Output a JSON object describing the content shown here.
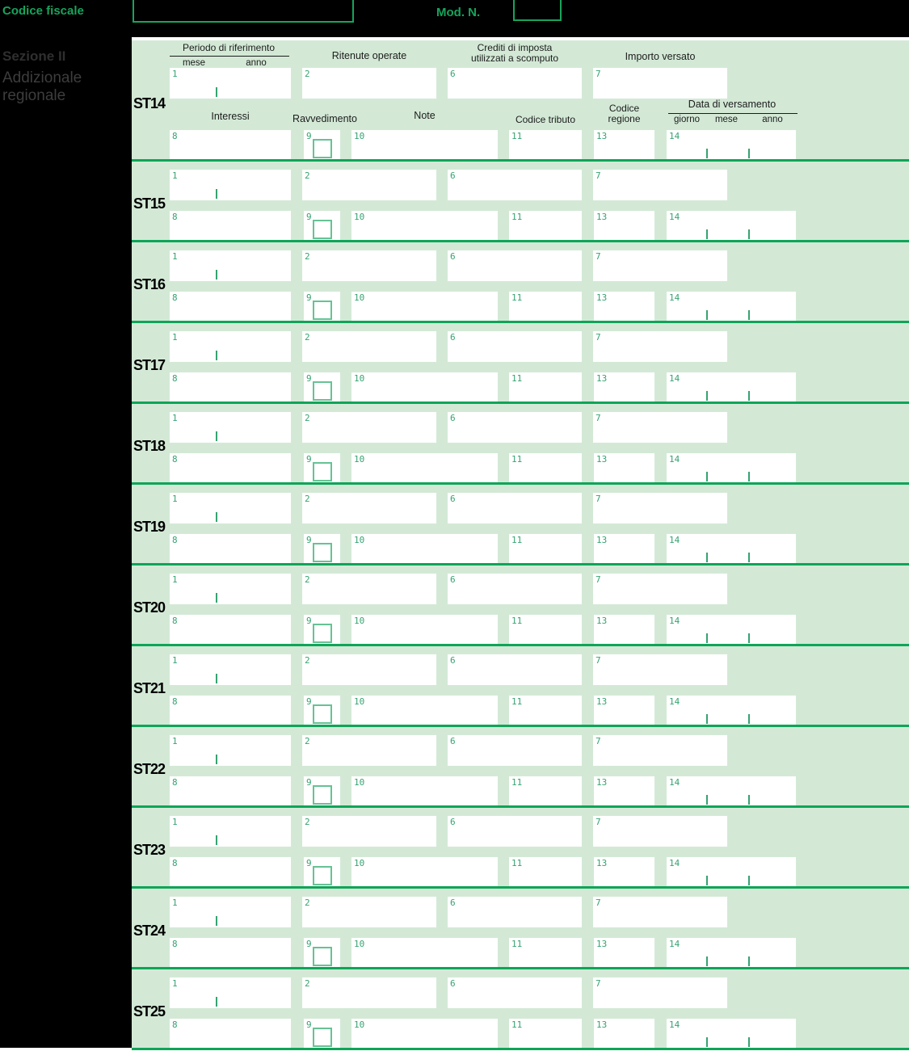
{
  "topbar": {
    "codice_fiscale_label": "Codice fiscale",
    "mod_n_label": "Mod. N."
  },
  "sidebar": {
    "section_title": "Sezione II",
    "section_subtitle": "Addizionale regionale"
  },
  "headers": {
    "periodo_di_riferimento": "Periodo di riferimento",
    "mese": "mese",
    "anno": "anno",
    "ritenute_operate": "Ritenute operate",
    "crediti_line1": "Crediti di imposta",
    "crediti_line2": "utilizzati a scomputo",
    "importo_versato": "Importo versato",
    "interessi": "Interessi",
    "ravvedimento": "Ravvedimento",
    "note": "Note",
    "codice_tributo": "Codice tributo",
    "codice_regione_line1": "Codice",
    "codice_regione_line2": "regione",
    "data_di_versamento": "Data di versamento",
    "giorno": "giorno",
    "mese2": "mese",
    "anno2": "anno"
  },
  "field_numbers": {
    "f1": "1",
    "f2": "2",
    "f6": "6",
    "f7": "7",
    "f8": "8",
    "f9": "9",
    "f10": "10",
    "f11": "11",
    "f13": "13",
    "f14": "14"
  },
  "rows": [
    {
      "label": "ST14"
    },
    {
      "label": "ST15"
    },
    {
      "label": "ST16"
    },
    {
      "label": "ST17"
    },
    {
      "label": "ST18"
    },
    {
      "label": "ST19"
    },
    {
      "label": "ST20"
    },
    {
      "label": "ST21"
    },
    {
      "label": "ST22"
    },
    {
      "label": "ST23"
    },
    {
      "label": "ST24"
    },
    {
      "label": "ST25"
    }
  ],
  "colors": {
    "accent_green": "#17a45c",
    "separator_green": "#0ea558",
    "background_green": "#d3e9d6",
    "field_number_green": "#36a371",
    "checkbox_border_green": "#66c295"
  }
}
